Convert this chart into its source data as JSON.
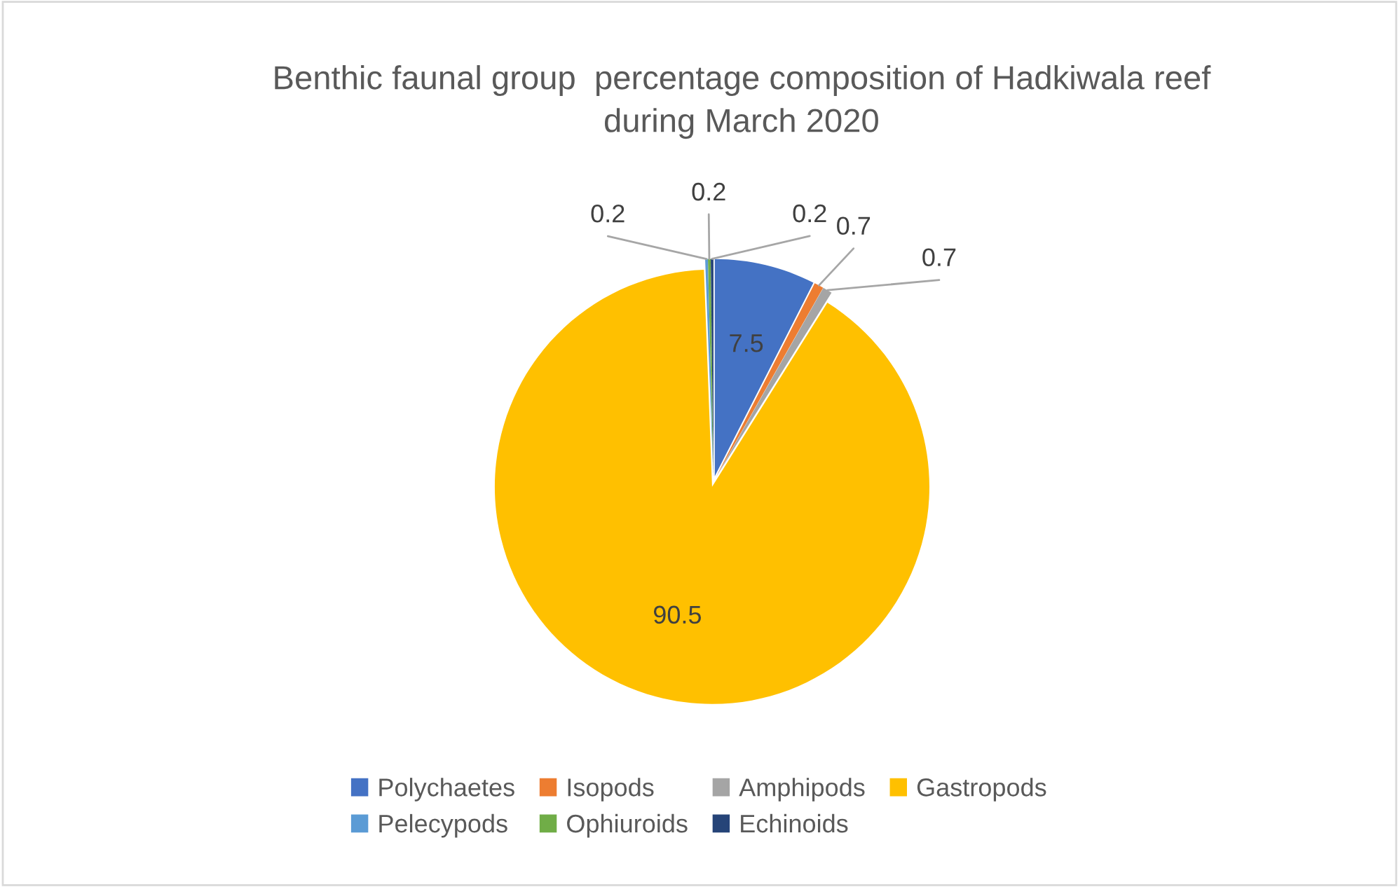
{
  "chart_data": {
    "type": "pie",
    "title": "Benthic faunal group  percentage composition of Hadkiwala reef during March 2020",
    "categories": [
      "Polychaetes",
      "Isopods",
      "Amphipods",
      "Gastropods",
      "Pelecypods",
      "Ophiuroids",
      "Echinoids"
    ],
    "values": [
      7.5,
      0.7,
      0.7,
      90.5,
      0.2,
      0.2,
      0.2
    ],
    "colors": [
      "#4472c4",
      "#ed7d31",
      "#a5a5a5",
      "#ffc000",
      "#5b9bd5",
      "#70ad47",
      "#264478"
    ],
    "data_labels": true,
    "legend": "bottom"
  }
}
